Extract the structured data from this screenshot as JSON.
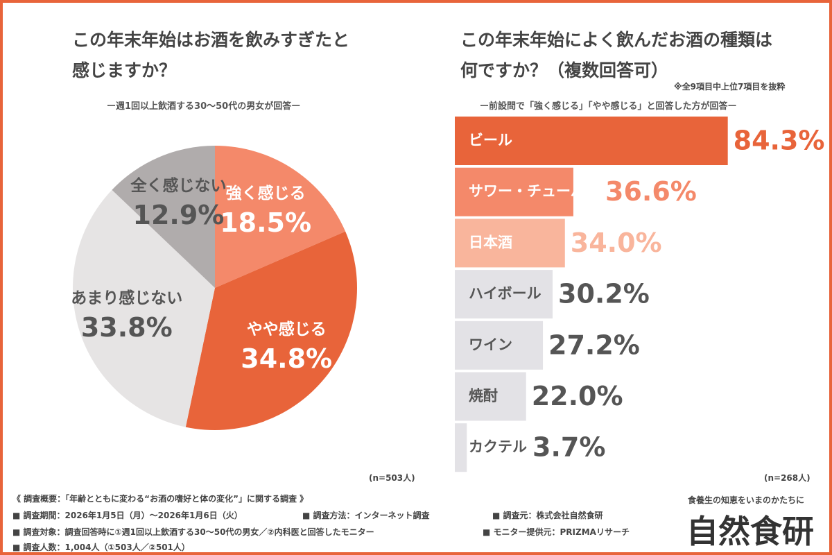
{
  "chart_data": [
    {
      "type": "pie",
      "title": "この年末年始はお酒を飲みすぎたと\n感じますか？",
      "subtitle": "ー週1回以上飲酒する30〜50代の男女が回答ー",
      "categories": [
        "強く感じる",
        "やや感じる",
        "あまり感じない",
        "全く感じない"
      ],
      "values": [
        18.5,
        34.8,
        33.8,
        12.9
      ],
      "value_labels": [
        "18.5%",
        "34.8%",
        "33.8%",
        "12.9%"
      ],
      "colors": [
        "#f4896a",
        "#e8643a",
        "#e6e4e4",
        "#b0acac"
      ],
      "label_colors": [
        "#ffffff",
        "#ffffff",
        "#555555",
        "#555555"
      ],
      "note": "(n=503人)"
    },
    {
      "type": "hbar",
      "title": "この年末年始によく飲んだお酒の種類は\n何ですか？（複数回答可）",
      "annotation": "※全9項目中上位7項目を抜粋",
      "subtitle": "ー前設問で「強く感じる」「やや感じる」と回答した方が回答ー",
      "categories": [
        "ビール",
        "サワー・チューハイ",
        "日本酒",
        "ハイボール",
        "ワイン",
        "焼酎",
        "カクテル"
      ],
      "values": [
        84.3,
        36.6,
        34.0,
        30.2,
        27.2,
        22.0,
        3.7
      ],
      "value_labels": [
        "84.3%",
        "36.6%",
        "34.0%",
        "30.2%",
        "27.2%",
        "22.0%",
        "3.7%"
      ],
      "colors": [
        "#e8643a",
        "#f4896a",
        "#f9b59c",
        "#e3e2e6",
        "#e3e2e6",
        "#e3e2e6",
        "#e3e2e6"
      ],
      "label_colors": [
        "#ffffff",
        "#ffffff",
        "#ffffff",
        "#555555",
        "#555555",
        "#555555",
        "#555555"
      ],
      "value_colors": [
        "#e8643a",
        "#f4896a",
        "#f9b59c",
        "#555555",
        "#555555",
        "#555555",
        "#555555"
      ],
      "xlim": [
        0,
        100
      ],
      "note": "(n=268人)"
    }
  ],
  "footer": {
    "heading": "《 調査概要：「年齢とともに変わる“お酒の嗜好と体の変化”」に関する調査 》",
    "items": [
      "■ 調査期間：2026年1月5日（月）〜2026年1月6日（火）",
      "■ 調査方法：インターネット調査",
      "■ 調査元：株式会社自然食研",
      "■ 調査対象：調査回答時に①週1回以上飲酒する30〜50代の男女／②内科医と回答したモニター",
      "■ モニター提供元：PRIZMAリサーチ",
      "■ 調査人数：1,004人（①503人／②501人）"
    ]
  },
  "logo": {
    "tagline": "食養生の知恵をいまのかたちに",
    "name": "自然食研"
  }
}
